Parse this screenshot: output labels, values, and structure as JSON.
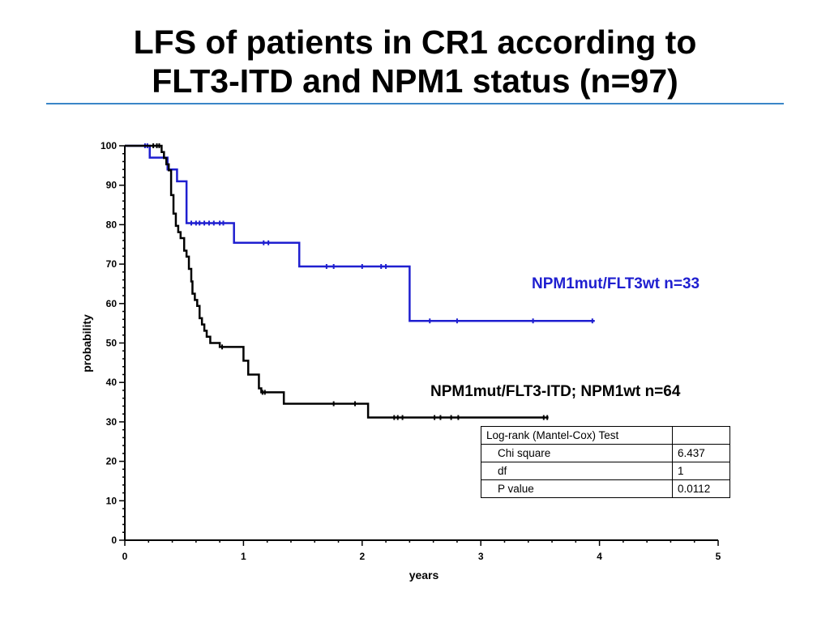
{
  "title_line1": "LFS of patients in CR1 according to",
  "title_line2": "FLT3-ITD and NPM1 status (n=97)",
  "chart_data": {
    "type": "line",
    "subtype": "kaplan-meier-step",
    "xlabel": "years",
    "ylabel": "probability",
    "xlim": [
      0,
      5
    ],
    "ylim": [
      0,
      100
    ],
    "x_ticks": [
      "0",
      "1",
      "2",
      "3",
      "4",
      "5"
    ],
    "y_ticks": [
      "0",
      "10",
      "20",
      "30",
      "40",
      "50",
      "60",
      "70",
      "80",
      "90",
      "100"
    ],
    "grid": false,
    "series": [
      {
        "name": "NPM1mut/FLT3wt n=33",
        "color": "#1f1fd0",
        "x": [
          0,
          0.21,
          0.36,
          0.44,
          0.52,
          0.92,
          1.47,
          2.4,
          3.96
        ],
        "y": [
          100,
          97,
          94,
          91,
          80.4,
          75.4,
          69.4,
          55.6,
          55.6
        ],
        "censor_x": [
          0.17,
          0.19,
          0.56,
          0.6,
          0.63,
          0.67,
          0.71,
          0.75,
          0.8,
          0.83,
          1.17,
          1.21,
          1.7,
          1.76,
          2.0,
          2.16,
          2.2,
          2.57,
          2.8,
          3.44,
          3.94
        ],
        "censor_y": [
          100,
          100,
          80.4,
          80.4,
          80.4,
          80.4,
          80.4,
          80.4,
          80.4,
          80.4,
          75.4,
          75.4,
          69.4,
          69.4,
          69.4,
          69.4,
          69.4,
          55.6,
          55.6,
          55.6,
          55.6
        ]
      },
      {
        "name": "NPM1mut/FLT3-ITD; NPM1wt n=64",
        "color": "#000000",
        "x": [
          0,
          0.31,
          0.33,
          0.35,
          0.37,
          0.39,
          0.41,
          0.43,
          0.45,
          0.47,
          0.5,
          0.52,
          0.54,
          0.56,
          0.57,
          0.59,
          0.61,
          0.63,
          0.65,
          0.67,
          0.69,
          0.72,
          0.75,
          0.8,
          1.0,
          1.04,
          1.13,
          1.15,
          1.34,
          2.05,
          3.57
        ],
        "y": [
          100,
          98.4,
          96.9,
          95.3,
          93.8,
          87.5,
          82.8,
          79.7,
          78.1,
          76.6,
          73.4,
          71.9,
          68.8,
          65.6,
          62.5,
          60.9,
          59.4,
          56.3,
          54.7,
          53.1,
          51.6,
          50.0,
          50.0,
          49.0,
          45.5,
          42.0,
          38.5,
          37.5,
          34.6,
          31.1,
          31.1
        ],
        "censor_x": [
          0.24,
          0.27,
          0.29,
          0.82,
          1.16,
          1.18,
          1.76,
          1.94,
          2.27,
          2.3,
          2.34,
          2.61,
          2.66,
          2.75,
          2.81,
          3.53,
          3.56
        ],
        "censor_y": [
          100,
          100,
          100,
          49.0,
          37.5,
          37.5,
          34.6,
          34.6,
          31.1,
          31.1,
          31.1,
          31.1,
          31.1,
          31.1,
          31.1,
          31.1,
          31.1
        ]
      }
    ]
  },
  "stats_table": {
    "header": "Log-rank (Mantel-Cox) Test",
    "rows": [
      {
        "label": "Chi square",
        "value": "6.437"
      },
      {
        "label": "df",
        "value": "1"
      },
      {
        "label": "P value",
        "value": "0.0112"
      }
    ]
  }
}
